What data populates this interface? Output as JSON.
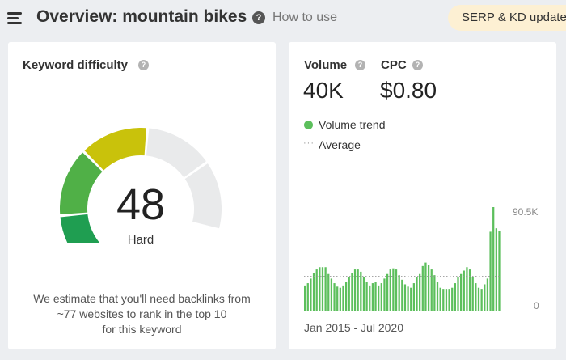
{
  "header": {
    "title": "Overview: mountain bikes",
    "how_to_use": "How to use",
    "serp_button": "SERP & KD updates",
    "help_glyph": "?"
  },
  "keyword_difficulty": {
    "title": "Keyword difficulty",
    "value": "48",
    "level": "Hard",
    "description_lines": [
      "We estimate that you'll need backlinks from",
      "~77 websites to rank in the top 10",
      "for this keyword"
    ],
    "gauge_segments": [
      {
        "color": "#1f9e51",
        "filled": true
      },
      {
        "color": "#50b047",
        "filled": true
      },
      {
        "color": "#c9c20b",
        "filled": true
      },
      {
        "color": "#e9eaeb",
        "filled": false
      },
      {
        "color": "#e9eaeb",
        "filled": false
      }
    ]
  },
  "volume": {
    "label": "Volume",
    "value": "40K",
    "cpc_label": "CPC",
    "cpc_value": "$0.80",
    "legend_trend": "Volume trend",
    "legend_average": "Average",
    "legend_dots": "···",
    "date_range": "Jan 2015 - Jul 2020"
  },
  "chart_data": {
    "type": "bar",
    "title": "Volume trend",
    "x_range_label": "Jan 2015 - Jul 2020",
    "y_tick_labels": [
      "90.5K",
      "0"
    ],
    "ylim": [
      0,
      90500
    ],
    "average": 30000,
    "colors": {
      "bar": "#5cbf5c",
      "average_line": "#9a9a9a"
    },
    "series": [
      {
        "name": "Volume trend",
        "values": [
          22000,
          24000,
          28000,
          33000,
          36000,
          38000,
          38000,
          38000,
          32000,
          28000,
          24000,
          21000,
          20000,
          22000,
          25000,
          29000,
          33000,
          36000,
          36000,
          34000,
          29000,
          25000,
          22000,
          24000,
          25000,
          22000,
          24000,
          28000,
          32000,
          36000,
          37000,
          36000,
          31000,
          27000,
          23000,
          21000,
          20000,
          24000,
          29000,
          32000,
          39000,
          42000,
          40000,
          36000,
          31000,
          25000,
          20000,
          19000,
          19000,
          19000,
          20000,
          24000,
          29000,
          32000,
          35000,
          38000,
          36000,
          29000,
          24000,
          20000,
          19000,
          23000,
          28000,
          69000,
          90500,
          72000,
          70000
        ]
      }
    ]
  }
}
